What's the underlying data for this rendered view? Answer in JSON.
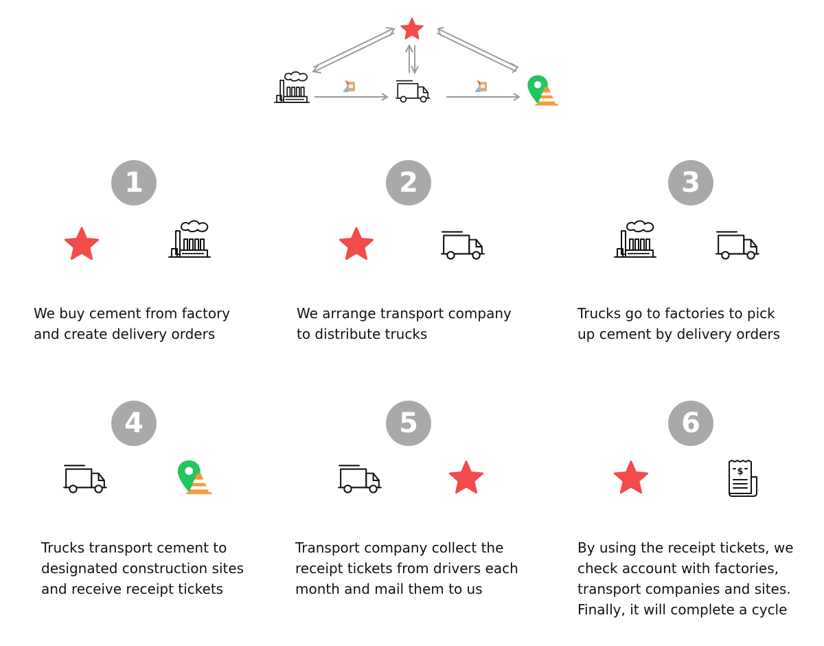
{
  "colors": {
    "star": "#f24b4b",
    "step_circle": "#a9a9a9",
    "arrow": "#9a9a9a",
    "pin": "#22c55e",
    "cone": "#f59a3a",
    "icon_line": "#111111"
  },
  "top_diagram": {
    "nodes": [
      "star-icon",
      "factory-icon",
      "truck-icon",
      "site-icon"
    ]
  },
  "steps": [
    {
      "number": "1",
      "icons": [
        "star-icon",
        "factory-icon"
      ],
      "line1": "We buy cement from factory",
      "line2": "and create delivery orders"
    },
    {
      "number": "2",
      "icons": [
        "star-icon",
        "truck-icon"
      ],
      "line1": "We arrange transport company",
      "line2": "to distribute trucks"
    },
    {
      "number": "3",
      "icons": [
        "factory-icon",
        "truck-icon"
      ],
      "line1": "Trucks go to factories to pick",
      "line2": "up cement by delivery orders"
    },
    {
      "number": "4",
      "icons": [
        "truck-icon",
        "site-icon"
      ],
      "line1": "Trucks transport cement to",
      "line2": "designated construction sites",
      "line3": "and receive receipt tickets"
    },
    {
      "number": "5",
      "icons": [
        "truck-icon",
        "star-icon"
      ],
      "line1": "Transport company collect the",
      "line2": "receipt tickets from drivers each",
      "line3": "month and mail them to us"
    },
    {
      "number": "6",
      "icons": [
        "star-icon",
        "receipt-icon"
      ],
      "line1": "By using the receipt tickets, we",
      "line2": "check account with factories,",
      "line3": "transport companies and sites.",
      "line4": "Finally, it will complete a cycle"
    }
  ]
}
